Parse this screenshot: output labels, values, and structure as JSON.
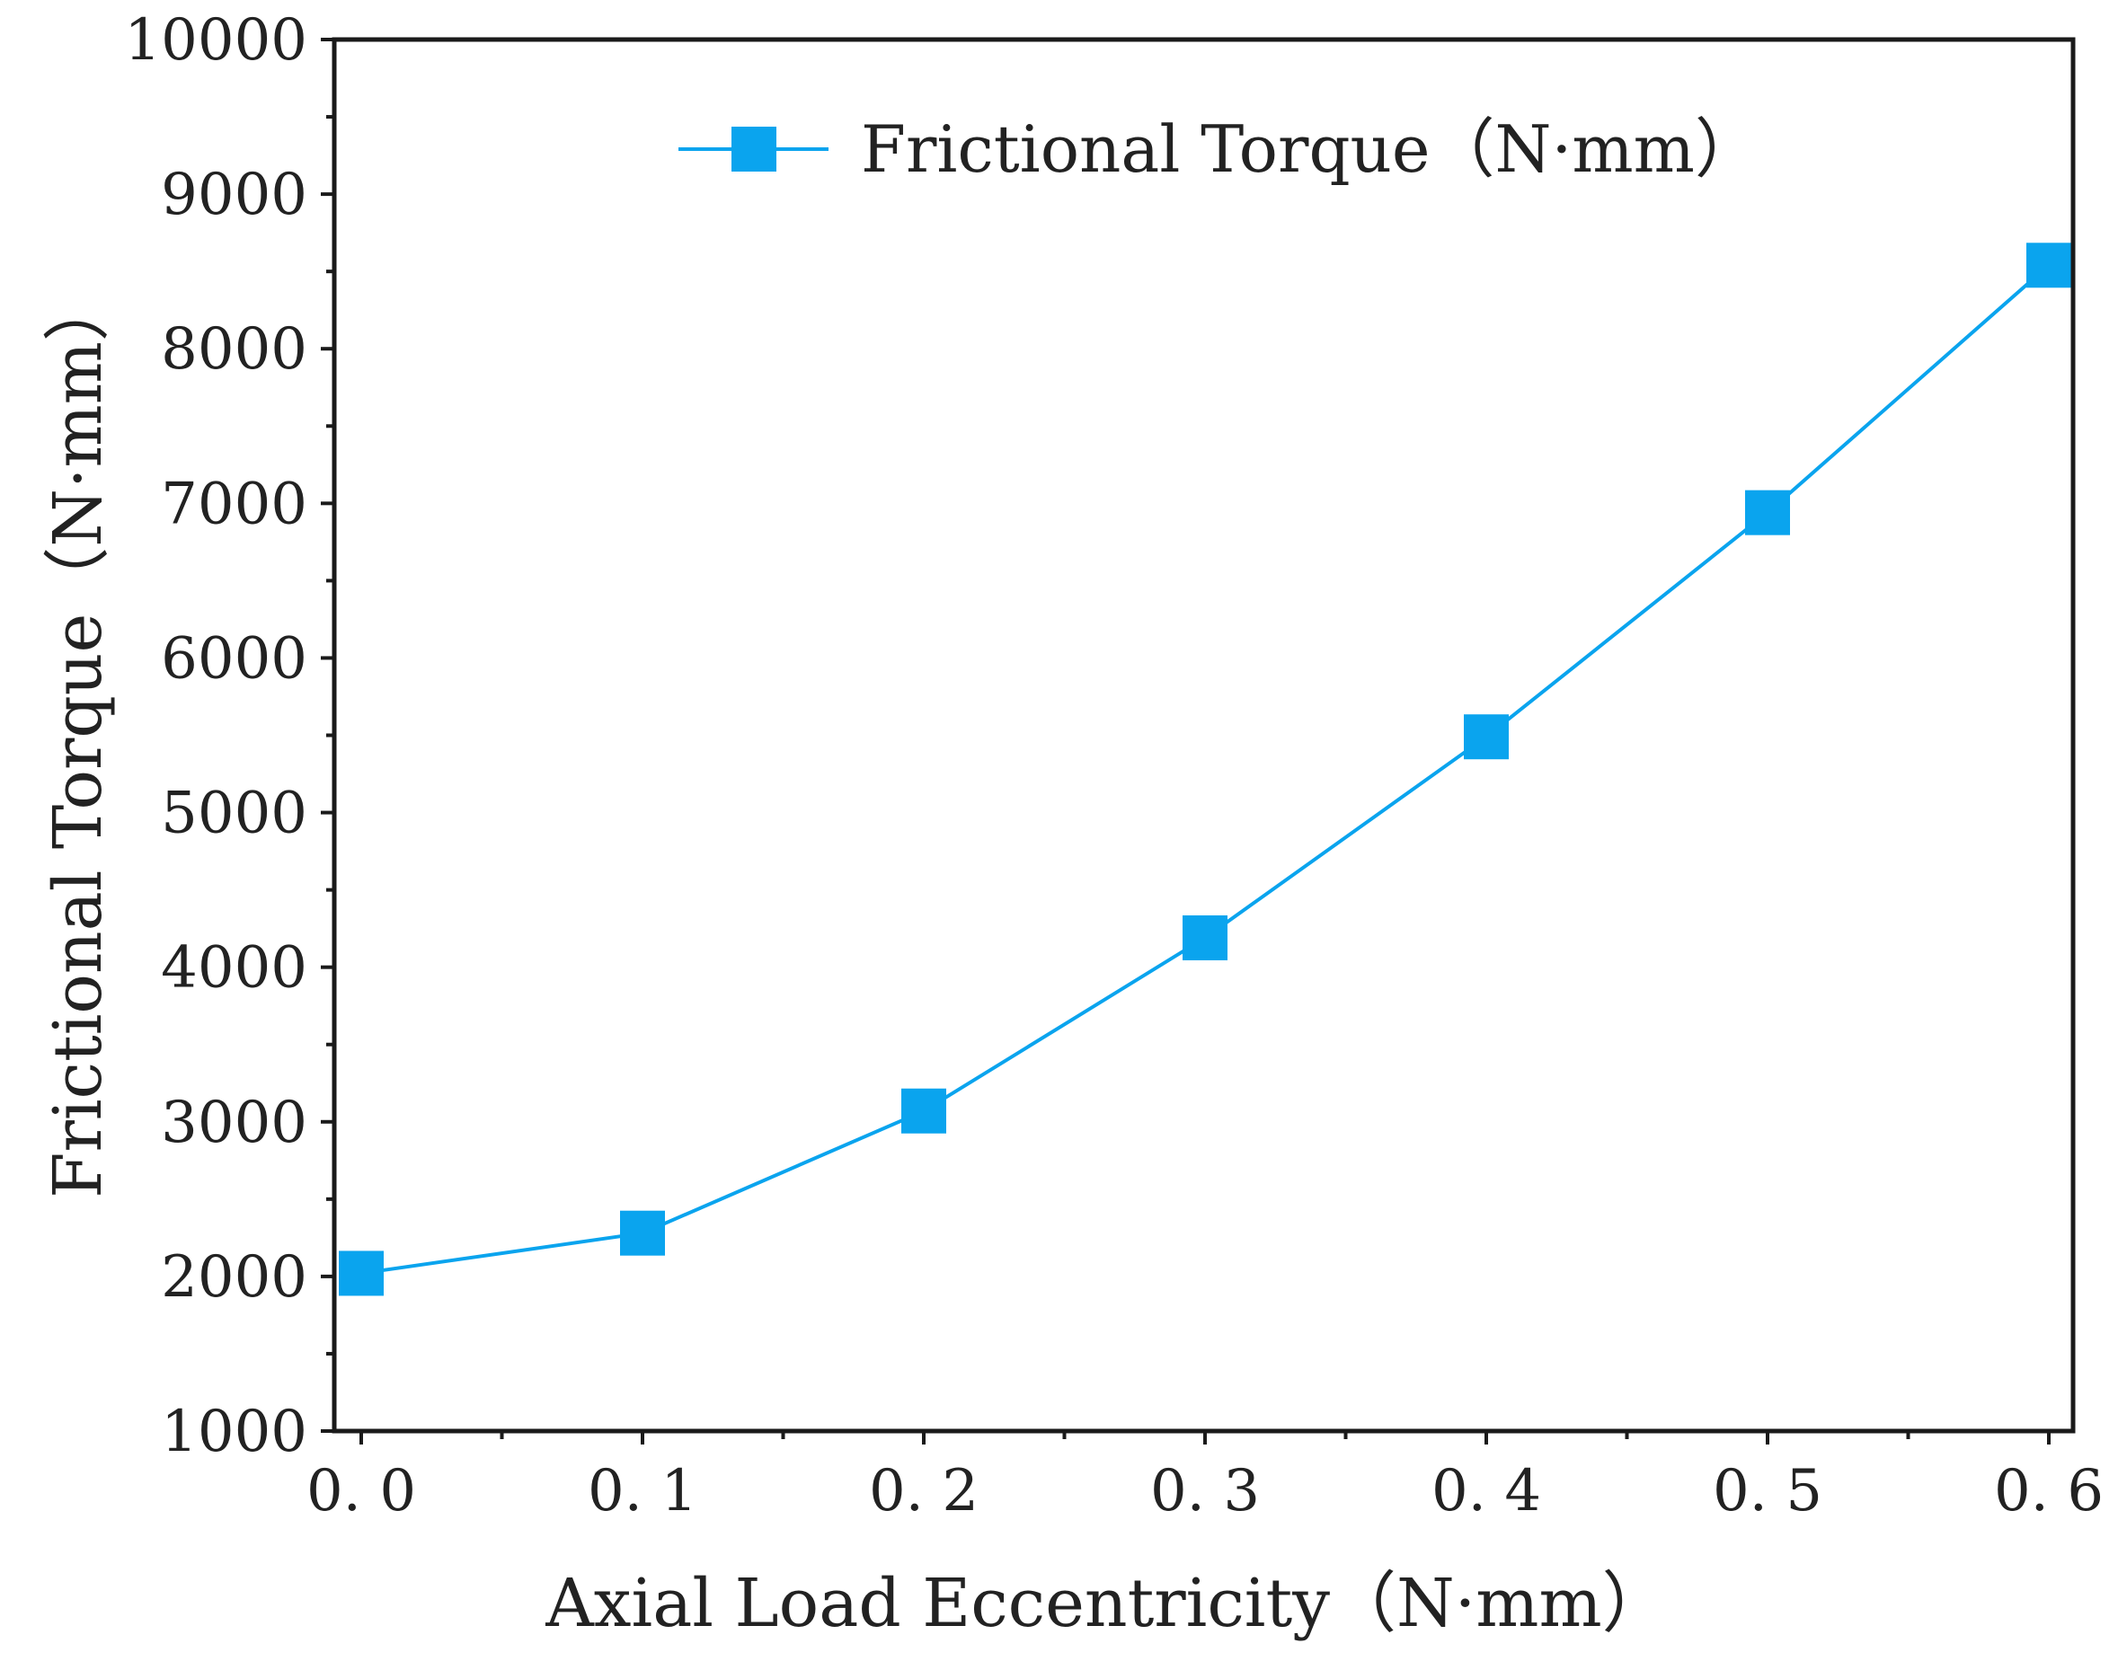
{
  "colors": {
    "series": "#0aa4ee",
    "axis": "#1a1a1a",
    "text": "#222222",
    "background": "#ffffff"
  },
  "chart_data": {
    "type": "line",
    "title": "",
    "xlabel": "Axial Load Eccentricity（N·mm）",
    "ylabel": "Frictional Torque（N·mm）",
    "xlim": [
      0.0,
      0.6
    ],
    "ylim": [
      1000,
      10000
    ],
    "x_ticks": [
      0.0,
      0.1,
      0.2,
      0.3,
      0.4,
      0.5,
      0.6
    ],
    "x_tick_labels": [
      "0. 0",
      "0. 1",
      "0. 2",
      "0. 3",
      "0. 4",
      "0. 5",
      "0. 6"
    ],
    "x_minor_ticks": [
      0.05,
      0.15,
      0.25,
      0.35,
      0.45,
      0.55
    ],
    "y_ticks": [
      1000,
      2000,
      3000,
      4000,
      5000,
      6000,
      7000,
      8000,
      9000,
      10000
    ],
    "y_tick_labels": [
      "1000",
      "2000",
      "3000",
      "4000",
      "5000",
      "6000",
      "7000",
      "8000",
      "9000",
      "10000"
    ],
    "y_minor_ticks": [
      1500,
      2500,
      3500,
      4500,
      5500,
      6500,
      7500,
      8500,
      9500
    ],
    "grid": false,
    "legend_position": "top-center",
    "series": [
      {
        "name": "Frictional Torque（N·mm）",
        "marker": "square",
        "x": [
          0.0,
          0.1,
          0.2,
          0.3,
          0.4,
          0.5,
          0.6
        ],
        "y": [
          2020,
          2280,
          3070,
          4190,
          5490,
          6940,
          8540
        ]
      }
    ]
  }
}
